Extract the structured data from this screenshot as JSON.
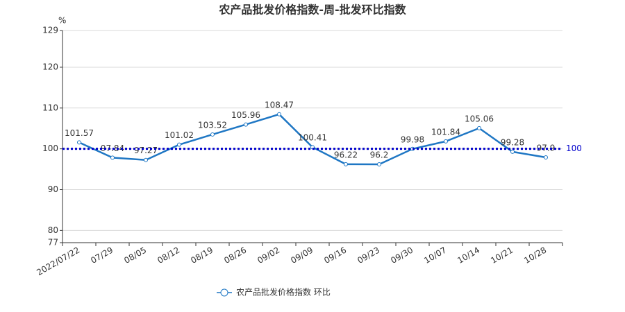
{
  "chart_data": {
    "type": "line",
    "title": "农产品批发价格指数-周-批发环比指数",
    "y_unit": "%",
    "categories": [
      "2022/07/22",
      "07/29",
      "08/05",
      "08/12",
      "08/19",
      "08/26",
      "09/02",
      "09/09",
      "09/16",
      "09/23",
      "09/30",
      "10/07",
      "10/14",
      "10/21",
      "10/28"
    ],
    "series": [
      {
        "name": "农产品批发价格指数 环比",
        "color": "#1f77c4",
        "values": [
          101.57,
          97.84,
          97.27,
          101.02,
          103.52,
          105.96,
          108.47,
          100.41,
          96.22,
          96.2,
          99.98,
          101.84,
          105.06,
          99.28,
          97.9
        ]
      }
    ],
    "ylim": [
      77,
      129
    ],
    "yticks": [
      77,
      80,
      90,
      100,
      110,
      120,
      129
    ],
    "grid": true,
    "reference_line": 100,
    "reference_color": "#0000cc",
    "legend": "bottom"
  }
}
